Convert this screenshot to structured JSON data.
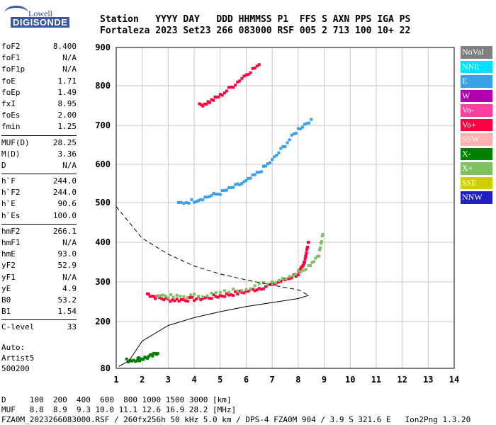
{
  "logo": {
    "line1": "Lowell",
    "line2": "DIGISONDE"
  },
  "header": {
    "line1": "Station   YYYY DAY   DDD HHMMSS P1  FFS S AXN PPS IGA PS",
    "line2": "Fortaleza 2023 Set23 266 083000 RSF 005 2 713 100 10+ 22"
  },
  "params": {
    "group1": [
      {
        "k": "foF2",
        "v": "8.400"
      },
      {
        "k": "foF1",
        "v": "N/A"
      },
      {
        "k": "foF1p",
        "v": "N/A"
      },
      {
        "k": "foE",
        "v": "1.71"
      },
      {
        "k": "foEp",
        "v": "1.49"
      },
      {
        "k": "fxI",
        "v": "8.95"
      },
      {
        "k": "foEs",
        "v": "2.00"
      },
      {
        "k": "fmin",
        "v": "1.25"
      }
    ],
    "group2": [
      {
        "k": "MUF(D)",
        "v": "28.25"
      },
      {
        "k": "M(D)",
        "v": "3.36"
      },
      {
        "k": "D",
        "v": "N/A"
      }
    ],
    "group3": [
      {
        "k": "h`F",
        "v": "244.0"
      },
      {
        "k": "h`F2",
        "v": "244.0"
      },
      {
        "k": "h`E",
        "v": "90.6"
      },
      {
        "k": "h`Es",
        "v": "100.0"
      }
    ],
    "group4": [
      {
        "k": "hmF2",
        "v": "266.1"
      },
      {
        "k": "hmF1",
        "v": "N/A"
      },
      {
        "k": "hmE",
        "v": "93.0"
      },
      {
        "k": "yF2",
        "v": "52.9"
      },
      {
        "k": "yF1",
        "v": "N/A"
      },
      {
        "k": "yE",
        "v": "4.9"
      },
      {
        "k": "B0",
        "v": "53.2"
      },
      {
        "k": "B1",
        "v": "1.54"
      }
    ],
    "group5": [
      {
        "k": "C-level",
        "v": "33"
      }
    ]
  },
  "auto": {
    "line1": "Auto:",
    "line2": "Artist5",
    "line3": "500200"
  },
  "footer": {
    "line1": "D     100  200  400  600  800 1000 1500 3000 [km]",
    "line2": "MUF   8.8  8.9  9.3 10.0 11.1 12.6 16.9 28.2 [MHz]",
    "line3": "FZA0M_2023266083000.RSF / 260fx256h 50 kHz 5.0 km / DPS-4 FZA0M 904 / 3.9 S 321.6 E   Ion2Png 1.3.20"
  },
  "legend": [
    {
      "label": "NoVal",
      "color": "#808080"
    },
    {
      "label": "NNE",
      "color": "#00e0ff"
    },
    {
      "label": "E",
      "color": "#3aa0e8"
    },
    {
      "label": "W",
      "color": "#b000b0"
    },
    {
      "label": "Vo-",
      "color": "#ff40a0"
    },
    {
      "label": "Vo+",
      "color": "#ff0040"
    },
    {
      "label": "SSW",
      "color": "#ffb0b0"
    },
    {
      "label": "X-",
      "color": "#008000"
    },
    {
      "label": "X+",
      "color": "#80c060"
    },
    {
      "label": "SSE",
      "color": "#d0d000"
    },
    {
      "label": "NNW",
      "color": "#2020c0"
    }
  ],
  "chart_data": {
    "type": "scatter",
    "xlabel": "",
    "ylabel": "",
    "xlim": [
      1,
      14
    ],
    "ylim": [
      80,
      900
    ],
    "x_ticks": [
      1,
      2,
      3,
      4,
      5,
      6,
      7,
      8,
      9,
      10,
      11,
      12,
      13,
      14
    ],
    "y_ticks": [
      80,
      200,
      300,
      400,
      500,
      600,
      700,
      800,
      900
    ],
    "grid": true,
    "series": [
      {
        "name": "O-trace F (Vo+)",
        "color": "#ff0040",
        "points": [
          [
            2.2,
            270
          ],
          [
            2.5,
            262
          ],
          [
            3.0,
            255
          ],
          [
            3.5,
            255
          ],
          [
            4.0,
            257
          ],
          [
            4.5,
            260
          ],
          [
            5.0,
            265
          ],
          [
            5.5,
            270
          ],
          [
            6.0,
            276
          ],
          [
            6.5,
            284
          ],
          [
            7.0,
            294
          ],
          [
            7.5,
            306
          ],
          [
            8.0,
            320
          ],
          [
            8.2,
            340
          ],
          [
            8.3,
            370
          ],
          [
            8.4,
            400
          ]
        ]
      },
      {
        "name": "X-trace F (X+)",
        "color": "#80c060",
        "points": [
          [
            2.6,
            268
          ],
          [
            3.2,
            262
          ],
          [
            4.0,
            265
          ],
          [
            5.0,
            272
          ],
          [
            6.0,
            285
          ],
          [
            7.0,
            300
          ],
          [
            7.8,
            318
          ],
          [
            8.4,
            340
          ],
          [
            8.8,
            370
          ],
          [
            8.95,
            420
          ]
        ]
      },
      {
        "name": "2nd hop (E)",
        "color": "#3aa0e8",
        "points": [
          [
            3.4,
            498
          ],
          [
            4.0,
            505
          ],
          [
            4.5,
            515
          ],
          [
            5.0,
            525
          ],
          [
            5.5,
            540
          ],
          [
            6.0,
            555
          ],
          [
            6.5,
            580
          ],
          [
            7.0,
            610
          ],
          [
            7.5,
            650
          ],
          [
            8.0,
            690
          ],
          [
            8.5,
            715
          ]
        ]
      },
      {
        "name": "3rd hop (Vo+)",
        "color": "#ff0040",
        "points": [
          [
            4.2,
            750
          ],
          [
            4.6,
            760
          ],
          [
            5.0,
            775
          ],
          [
            5.5,
            800
          ],
          [
            6.0,
            830
          ],
          [
            6.5,
            855
          ]
        ]
      },
      {
        "name": "Es (X-)",
        "color": "#008000",
        "points": [
          [
            1.4,
            100
          ],
          [
            1.8,
            103
          ],
          [
            2.0,
            105
          ],
          [
            2.3,
            110
          ],
          [
            2.6,
            118
          ]
        ]
      },
      {
        "name": "Profile (solid)",
        "color": "#000000",
        "points": [
          [
            1.1,
            85
          ],
          [
            1.5,
            100
          ],
          [
            2.0,
            150
          ],
          [
            3.0,
            190
          ],
          [
            4.0,
            210
          ],
          [
            5.0,
            225
          ],
          [
            6.0,
            238
          ],
          [
            7.0,
            248
          ],
          [
            8.0,
            258
          ],
          [
            8.4,
            266
          ]
        ]
      },
      {
        "name": "MUF curve (dashed)",
        "color": "#000000",
        "points": [
          [
            1.0,
            490
          ],
          [
            1.5,
            450
          ],
          [
            2.0,
            410
          ],
          [
            3.0,
            370
          ],
          [
            4.0,
            340
          ],
          [
            5.0,
            320
          ],
          [
            6.0,
            305
          ],
          [
            7.0,
            292
          ],
          [
            8.0,
            280
          ],
          [
            8.4,
            266
          ]
        ]
      }
    ]
  }
}
